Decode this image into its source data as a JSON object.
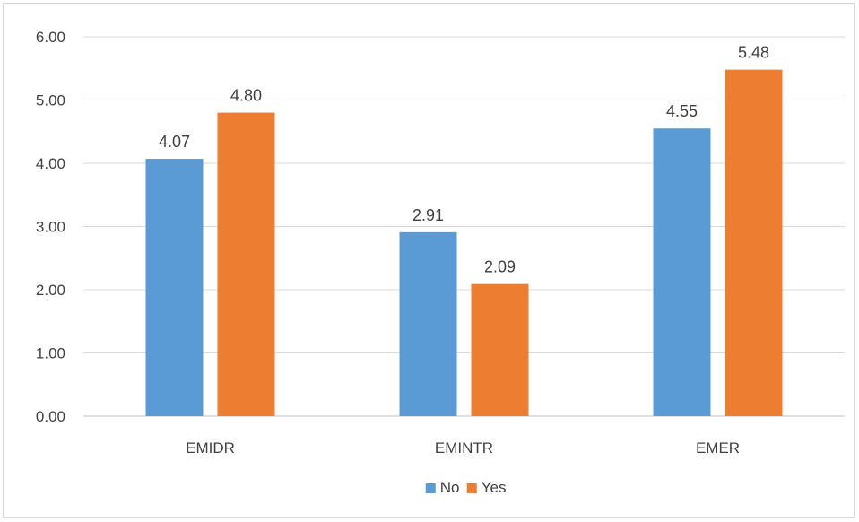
{
  "chart_data": {
    "type": "bar",
    "title": "",
    "xlabel": "",
    "ylabel": "",
    "categories": [
      "EMIDR",
      "EMINTR",
      "EMER"
    ],
    "series": [
      {
        "name": "No",
        "values": [
          4.07,
          2.91,
          4.55
        ],
        "labels": [
          "4.07",
          "2.91",
          "4.55"
        ],
        "color": "#5b9bd5"
      },
      {
        "name": "Yes",
        "values": [
          4.8,
          2.09,
          5.48
        ],
        "labels": [
          "4.80",
          "2.09",
          "5.48"
        ],
        "color": "#ed7d31"
      }
    ],
    "ylim": [
      0,
      6
    ],
    "yticks": [
      "0.00",
      "1.00",
      "2.00",
      "3.00",
      "4.00",
      "5.00",
      "6.00"
    ],
    "grid": true,
    "legend": "bottom"
  }
}
